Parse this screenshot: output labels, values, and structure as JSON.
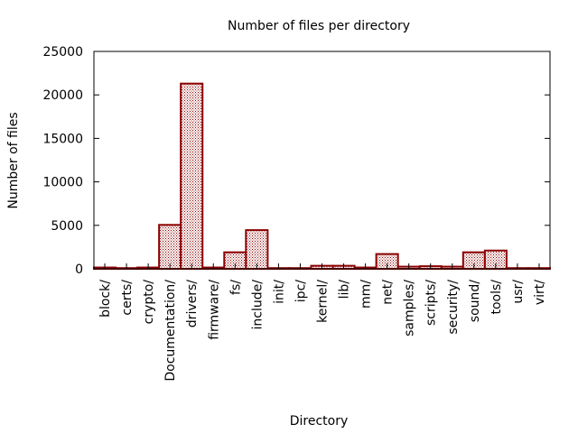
{
  "chart_data": {
    "type": "bar",
    "title": "Number of files per directory",
    "xlabel": "Directory",
    "ylabel": "Number of files",
    "ylim": [
      0,
      25000
    ],
    "yticks": [
      "0",
      "5000",
      "10000",
      "15000",
      "20000",
      "25000"
    ],
    "grid": false,
    "categories": [
      "block/",
      "certs/",
      "crypto/",
      "Documentation/",
      "drivers/",
      "firmware/",
      "fs/",
      "include/",
      "init/",
      "ipc/",
      "kernel/",
      "lib/",
      "mm/",
      "net/",
      "samples/",
      "scripts/",
      "security/",
      "sound/",
      "tools/",
      "usr/",
      "virt/"
    ],
    "values": [
      150,
      10,
      150,
      5050,
      21300,
      150,
      1900,
      4450,
      20,
      20,
      350,
      350,
      150,
      1700,
      250,
      300,
      250,
      1900,
      2100,
      20,
      50
    ],
    "colors": {
      "bar_stroke": "#8b0000",
      "bar_pattern": "#8b0000",
      "axis": "#000000"
    }
  }
}
